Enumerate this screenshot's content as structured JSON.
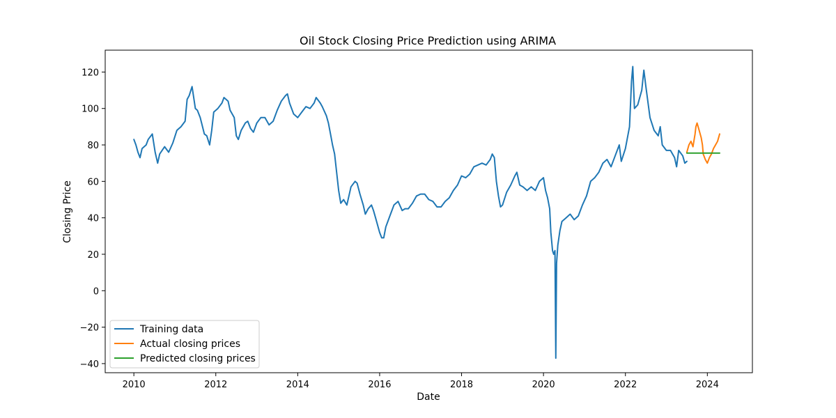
{
  "chart_data": {
    "type": "line",
    "title": "Oil Stock Closing Price Prediction using ARIMA",
    "xlabel": "Date",
    "ylabel": "Closing Price",
    "xlim": [
      2009.3,
      2025.1
    ],
    "ylim": [
      -45,
      132
    ],
    "x_ticks": [
      {
        "value": 2010,
        "label": "2010"
      },
      {
        "value": 2012,
        "label": "2012"
      },
      {
        "value": 2014,
        "label": "2014"
      },
      {
        "value": 2016,
        "label": "2016"
      },
      {
        "value": 2018,
        "label": "2018"
      },
      {
        "value": 2020,
        "label": "2020"
      },
      {
        "value": 2022,
        "label": "2022"
      },
      {
        "value": 2024,
        "label": "2024"
      }
    ],
    "y_ticks": [
      {
        "value": 120,
        "label": "120"
      },
      {
        "value": 100,
        "label": "100"
      },
      {
        "value": 80,
        "label": "80"
      },
      {
        "value": 60,
        "label": "60"
      },
      {
        "value": 40,
        "label": "40"
      },
      {
        "value": 20,
        "label": "20"
      },
      {
        "value": 0,
        "label": "0"
      },
      {
        "value": -20,
        "label": "−20"
      },
      {
        "value": -40,
        "label": "−40"
      }
    ],
    "grid": false,
    "legend_position": "lower-left",
    "series": [
      {
        "name": "Training data",
        "color": "#1f77b4",
        "points": [
          [
            2010.0,
            83
          ],
          [
            2010.05,
            80
          ],
          [
            2010.1,
            76
          ],
          [
            2010.15,
            73
          ],
          [
            2010.2,
            78
          ],
          [
            2010.3,
            80
          ],
          [
            2010.35,
            83
          ],
          [
            2010.45,
            86
          ],
          [
            2010.52,
            76
          ],
          [
            2010.58,
            70
          ],
          [
            2010.63,
            75
          ],
          [
            2010.75,
            79
          ],
          [
            2010.85,
            76
          ],
          [
            2010.95,
            81
          ],
          [
            2011.05,
            88
          ],
          [
            2011.15,
            90
          ],
          [
            2011.25,
            93
          ],
          [
            2011.3,
            105
          ],
          [
            2011.35,
            107
          ],
          [
            2011.42,
            112
          ],
          [
            2011.5,
            100
          ],
          [
            2011.55,
            99
          ],
          [
            2011.62,
            95
          ],
          [
            2011.72,
            86
          ],
          [
            2011.78,
            85
          ],
          [
            2011.85,
            80
          ],
          [
            2011.9,
            88
          ],
          [
            2011.95,
            98
          ],
          [
            2012.05,
            100
          ],
          [
            2012.15,
            103
          ],
          [
            2012.2,
            106
          ],
          [
            2012.3,
            104
          ],
          [
            2012.35,
            99
          ],
          [
            2012.45,
            95
          ],
          [
            2012.5,
            85
          ],
          [
            2012.55,
            83
          ],
          [
            2012.62,
            88
          ],
          [
            2012.72,
            92
          ],
          [
            2012.78,
            93
          ],
          [
            2012.85,
            89
          ],
          [
            2012.92,
            87
          ],
          [
            2013.0,
            92
          ],
          [
            2013.1,
            95
          ],
          [
            2013.2,
            95
          ],
          [
            2013.3,
            91
          ],
          [
            2013.4,
            93
          ],
          [
            2013.5,
            99
          ],
          [
            2013.6,
            104
          ],
          [
            2013.7,
            107
          ],
          [
            2013.75,
            108
          ],
          [
            2013.8,
            103
          ],
          [
            2013.9,
            97
          ],
          [
            2014.0,
            95
          ],
          [
            2014.1,
            98
          ],
          [
            2014.2,
            101
          ],
          [
            2014.3,
            100
          ],
          [
            2014.4,
            103
          ],
          [
            2014.45,
            106
          ],
          [
            2014.55,
            103
          ],
          [
            2014.6,
            101
          ],
          [
            2014.7,
            96
          ],
          [
            2014.75,
            92
          ],
          [
            2014.8,
            86
          ],
          [
            2014.85,
            80
          ],
          [
            2014.9,
            75
          ],
          [
            2014.95,
            65
          ],
          [
            2015.0,
            55
          ],
          [
            2015.05,
            48
          ],
          [
            2015.12,
            50
          ],
          [
            2015.2,
            47
          ],
          [
            2015.3,
            57
          ],
          [
            2015.4,
            60
          ],
          [
            2015.45,
            59
          ],
          [
            2015.52,
            53
          ],
          [
            2015.6,
            47
          ],
          [
            2015.65,
            42
          ],
          [
            2015.72,
            45
          ],
          [
            2015.8,
            47
          ],
          [
            2015.85,
            44
          ],
          [
            2015.9,
            40
          ],
          [
            2015.95,
            36
          ],
          [
            2016.0,
            32
          ],
          [
            2016.05,
            29
          ],
          [
            2016.1,
            29
          ],
          [
            2016.15,
            35
          ],
          [
            2016.2,
            38
          ],
          [
            2016.25,
            41
          ],
          [
            2016.35,
            47
          ],
          [
            2016.45,
            49
          ],
          [
            2016.55,
            44
          ],
          [
            2016.62,
            45
          ],
          [
            2016.7,
            45
          ],
          [
            2016.8,
            48
          ],
          [
            2016.9,
            52
          ],
          [
            2017.0,
            53
          ],
          [
            2017.1,
            53
          ],
          [
            2017.2,
            50
          ],
          [
            2017.3,
            49
          ],
          [
            2017.4,
            46
          ],
          [
            2017.5,
            46
          ],
          [
            2017.6,
            49
          ],
          [
            2017.7,
            51
          ],
          [
            2017.8,
            55
          ],
          [
            2017.9,
            58
          ],
          [
            2018.0,
            63
          ],
          [
            2018.1,
            62
          ],
          [
            2018.2,
            64
          ],
          [
            2018.3,
            68
          ],
          [
            2018.4,
            69
          ],
          [
            2018.5,
            70
          ],
          [
            2018.6,
            69
          ],
          [
            2018.7,
            72
          ],
          [
            2018.75,
            75
          ],
          [
            2018.8,
            73
          ],
          [
            2018.85,
            60
          ],
          [
            2018.9,
            52
          ],
          [
            2018.95,
            46
          ],
          [
            2019.0,
            47
          ],
          [
            2019.1,
            54
          ],
          [
            2019.2,
            58
          ],
          [
            2019.3,
            63
          ],
          [
            2019.35,
            65
          ],
          [
            2019.42,
            58
          ],
          [
            2019.5,
            57
          ],
          [
            2019.6,
            55
          ],
          [
            2019.7,
            57
          ],
          [
            2019.8,
            55
          ],
          [
            2019.9,
            60
          ],
          [
            2020.0,
            62
          ],
          [
            2020.05,
            55
          ],
          [
            2020.1,
            51
          ],
          [
            2020.15,
            45
          ],
          [
            2020.18,
            32
          ],
          [
            2020.22,
            22
          ],
          [
            2020.25,
            20
          ],
          [
            2020.28,
            22
          ],
          [
            2020.3,
            -37
          ],
          [
            2020.32,
            15
          ],
          [
            2020.35,
            25
          ],
          [
            2020.4,
            33
          ],
          [
            2020.45,
            38
          ],
          [
            2020.55,
            40
          ],
          [
            2020.65,
            42
          ],
          [
            2020.75,
            39
          ],
          [
            2020.85,
            41
          ],
          [
            2020.95,
            47
          ],
          [
            2021.05,
            52
          ],
          [
            2021.15,
            60
          ],
          [
            2021.25,
            62
          ],
          [
            2021.35,
            65
          ],
          [
            2021.45,
            70
          ],
          [
            2021.55,
            72
          ],
          [
            2021.65,
            68
          ],
          [
            2021.75,
            74
          ],
          [
            2021.85,
            80
          ],
          [
            2021.9,
            71
          ],
          [
            2022.0,
            78
          ],
          [
            2022.1,
            90
          ],
          [
            2022.15,
            115
          ],
          [
            2022.18,
            123
          ],
          [
            2022.22,
            100
          ],
          [
            2022.3,
            102
          ],
          [
            2022.4,
            110
          ],
          [
            2022.45,
            121
          ],
          [
            2022.5,
            112
          ],
          [
            2022.6,
            95
          ],
          [
            2022.7,
            88
          ],
          [
            2022.8,
            85
          ],
          [
            2022.85,
            90
          ],
          [
            2022.9,
            80
          ],
          [
            2023.0,
            77
          ],
          [
            2023.1,
            77
          ],
          [
            2023.2,
            73
          ],
          [
            2023.25,
            68
          ],
          [
            2023.3,
            77
          ],
          [
            2023.4,
            74
          ],
          [
            2023.45,
            70
          ],
          [
            2023.5,
            71
          ]
        ]
      },
      {
        "name": "Actual closing prices",
        "color": "#ff7f0e",
        "points": [
          [
            2023.5,
            76
          ],
          [
            2023.55,
            80
          ],
          [
            2023.6,
            82
          ],
          [
            2023.65,
            79
          ],
          [
            2023.7,
            86
          ],
          [
            2023.72,
            90
          ],
          [
            2023.75,
            92
          ],
          [
            2023.8,
            88
          ],
          [
            2023.85,
            84
          ],
          [
            2023.88,
            80
          ],
          [
            2023.9,
            75
          ],
          [
            2023.95,
            72
          ],
          [
            2024.0,
            70
          ],
          [
            2024.05,
            73
          ],
          [
            2024.1,
            75
          ],
          [
            2024.15,
            78
          ],
          [
            2024.2,
            80
          ],
          [
            2024.25,
            82
          ],
          [
            2024.3,
            86
          ]
        ]
      },
      {
        "name": "Predicted closing prices",
        "color": "#2ca02c",
        "points": [
          [
            2023.5,
            75.5
          ],
          [
            2024.3,
            75.5
          ]
        ]
      }
    ]
  }
}
